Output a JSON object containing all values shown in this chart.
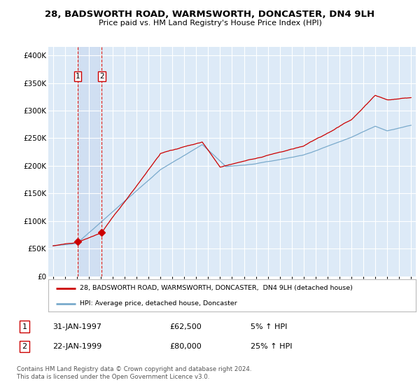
{
  "title": "28, BADSWORTH ROAD, WARMSWORTH, DONCASTER, DN4 9LH",
  "subtitle": "Price paid vs. HM Land Registry's House Price Index (HPI)",
  "ylabel_ticks": [
    "£0",
    "£50K",
    "£100K",
    "£150K",
    "£200K",
    "£250K",
    "£300K",
    "£350K",
    "£400K"
  ],
  "ytick_values": [
    0,
    50000,
    100000,
    150000,
    200000,
    250000,
    300000,
    350000,
    400000
  ],
  "ylim": [
    0,
    415000
  ],
  "sale1_date": "31-JAN-1997",
  "sale1_price": 62500,
  "sale1_year": 1997.08,
  "sale1_hpi": "5% ↑ HPI",
  "sale2_date": "22-JAN-1999",
  "sale2_price": 80000,
  "sale2_year": 1999.08,
  "sale2_hpi": "25% ↑ HPI",
  "legend_line1": "28, BADSWORTH ROAD, WARMSWORTH, DONCASTER,  DN4 9LH (detached house)",
  "legend_line2": "HPI: Average price, detached house, Doncaster",
  "footer": "Contains HM Land Registry data © Crown copyright and database right 2024.\nThis data is licensed under the Open Government Licence v3.0.",
  "line_color_red": "#cc0000",
  "line_color_blue": "#7aaacc",
  "bg_color": "#ddeaf7",
  "grid_color": "#ffffff",
  "vline_color": "#cc0000",
  "xlabel_start_year": 1995,
  "xlabel_end_year": 2025
}
